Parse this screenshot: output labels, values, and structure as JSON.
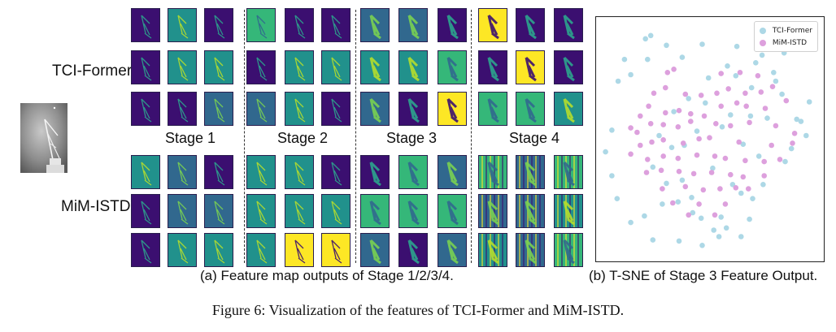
{
  "figure": {
    "caption": "Figure 6: Visualization of the features of TCI-Former and MiM-ISTD.",
    "input_image_name": "input-infrared-image"
  },
  "panel_a": {
    "rows": [
      "TCI-Former",
      "MiM-ISTD"
    ],
    "stages": [
      "Stage 1",
      "Stage 2",
      "Stage 3",
      "Stage 4"
    ],
    "caption": "(a) Feature map outputs of Stage 1/2/3/4."
  },
  "panel_b": {
    "caption": "(b) T-SNE of Stage 3 Feature Output.",
    "legend": [
      "TCI-Former",
      "MiM-ISTD"
    ],
    "colors": {
      "tci": "#add8e6",
      "mim": "#dda0dd"
    }
  },
  "colors": {
    "viridis_dark": "#3b0f70",
    "viridis_blue": "#31688e",
    "viridis_teal": "#21918c",
    "viridis_green": "#35b779",
    "viridis_yellow": "#fde725"
  },
  "chart_data": {
    "type": "scatter",
    "title": "",
    "xlabel": "",
    "ylabel": "",
    "series": [
      {
        "name": "TCI-Former",
        "x": [
          -0.56,
          -0.61,
          -0.07,
          0.26,
          0.71,
          0.5,
          0.17,
          0.61,
          0.4,
          0.69,
          0.95,
          0.87,
          0.78,
          0.72,
          0.51,
          0.3,
          0.11,
          -0.08,
          -0.29,
          -0.54,
          -0.75,
          -0.88,
          -0.93,
          -0.99,
          -0.93,
          -0.87,
          -0.75,
          -0.81,
          -0.59,
          -0.41,
          -0.26,
          -0.01,
          0.25,
          0.44,
          0.63,
          0.83,
          0.92,
          -0.34,
          -0.2,
          -0.04,
          0.2,
          0.39,
          0.55,
          -0.48,
          -0.36,
          -0.54,
          -0.24,
          -0.12,
          0.12,
          0.32,
          0.47,
          -0.41,
          -0.26,
          0.03,
          0.22,
          0.41,
          -0.3,
          -0.16,
          0.04,
          0.16,
          0.3,
          -0.62,
          -0.45,
          -0.17,
          0.09,
          0.38,
          -0.07
        ],
        "y": [
          0.95,
          0.92,
          0.87,
          0.85,
          0.79,
          0.77,
          0.67,
          0.61,
          0.47,
          0.41,
          0.34,
          0.16,
          -0.09,
          -0.21,
          -0.42,
          -0.5,
          -0.72,
          -0.73,
          -0.94,
          -0.93,
          -0.77,
          -0.55,
          -0.34,
          -0.12,
          0.08,
          0.53,
          0.59,
          0.73,
          0.73,
          0.86,
          0.75,
          0.56,
          0.58,
          0.7,
          0.53,
          0.18,
          0.03,
          0.25,
          0.37,
          0.33,
          0.22,
          0.21,
          0.19,
          0.03,
          -0.08,
          -0.26,
          -0.06,
          0.07,
          0.11,
          -0.05,
          -0.16,
          -0.41,
          -0.38,
          -0.27,
          -0.42,
          -0.55,
          -0.58,
          -0.68,
          -0.84,
          -0.82,
          -0.9,
          -0.71,
          -0.6,
          -0.54,
          -0.9,
          -0.74,
          -0.98
        ]
      },
      {
        "name": "MiM-ISTD",
        "x": [
          -0.4,
          -0.34,
          0.11,
          0.29,
          0.46,
          0.6,
          -0.53,
          -0.42,
          -0.23,
          -0.08,
          0.07,
          0.18,
          0.34,
          0.49,
          0.73,
          -0.66,
          -0.58,
          -0.42,
          -0.29,
          -0.18,
          -0.05,
          0.11,
          0.26,
          0.35,
          0.53,
          -0.75,
          -0.69,
          -0.56,
          -0.44,
          -0.3,
          -0.18,
          0.06,
          0.2,
          0.38,
          0.63,
          0.81,
          -0.66,
          -0.55,
          -0.44,
          -0.25,
          -0.1,
          0.0,
          0.28,
          0.59,
          0.79,
          -0.75,
          -0.59,
          -0.44,
          -0.3,
          -0.12,
          0.05,
          0.15,
          0.34,
          0.52,
          0.67,
          -0.6,
          -0.46,
          -0.29,
          -0.15,
          0.02,
          0.2,
          0.32,
          0.52,
          -0.45,
          -0.23,
          -0.06,
          0.1,
          0.25,
          0.37,
          -0.35,
          -0.1,
          0.15,
          -0.2,
          0.05
        ],
        "y": [
          0.61,
          0.64,
          0.6,
          0.61,
          0.58,
          0.48,
          0.42,
          0.47,
          0.41,
          0.4,
          0.42,
          0.46,
          0.42,
          0.43,
          0.35,
          0.21,
          0.3,
          0.24,
          0.26,
          0.23,
          0.21,
          0.3,
          0.33,
          0.3,
          0.28,
          0.1,
          0.06,
          0.14,
          0.13,
          0.11,
          0.16,
          0.14,
          0.12,
          0.15,
          0.12,
          0.05,
          -0.06,
          -0.03,
          -0.01,
          -0.04,
          -0.0,
          0.01,
          -0.03,
          -0.06,
          -0.04,
          -0.14,
          -0.19,
          -0.16,
          -0.18,
          -0.15,
          -0.16,
          -0.18,
          -0.2,
          -0.21,
          -0.19,
          -0.31,
          -0.29,
          -0.3,
          -0.32,
          -0.31,
          -0.33,
          -0.35,
          -0.34,
          -0.46,
          -0.44,
          -0.47,
          -0.46,
          -0.45,
          -0.46,
          -0.59,
          -0.6,
          -0.6,
          -0.7,
          -0.7
        ]
      }
    ],
    "xlim": [
      -1.08,
      1.08
    ],
    "ylim": [
      -1.12,
      1.12
    ],
    "legend_position": "top-right"
  }
}
